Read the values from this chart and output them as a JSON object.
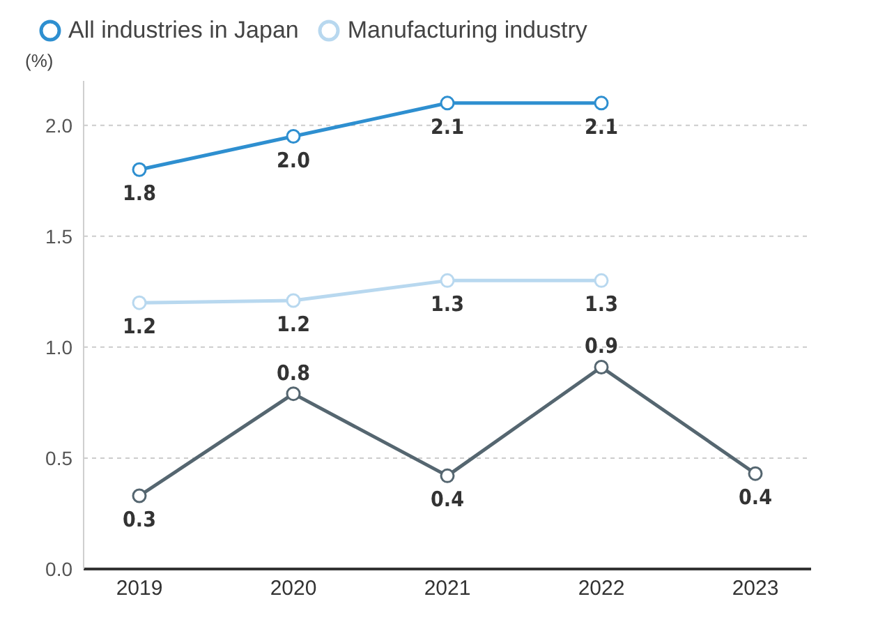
{
  "chart_data": {
    "type": "line",
    "ylabel": "(%)",
    "categories": [
      "2019",
      "2020",
      "2021",
      "2022",
      "2023"
    ],
    "series": [
      {
        "color": "#556670",
        "values": [
          0.33,
          0.79,
          0.42,
          0.91,
          0.43
        ],
        "value_labels": [
          "0.3",
          "0.8",
          "0.4",
          "0.9",
          "0.4"
        ]
      },
      {
        "name": "All industries in Japan",
        "color": "#2e8fd0",
        "values": [
          1.8,
          1.95,
          2.1,
          2.1,
          null
        ],
        "value_labels": [
          "1.8",
          "2.0",
          "2.1",
          "2.1",
          null
        ]
      },
      {
        "name": "Manufacturing industry",
        "color": "#b8d8ef",
        "values": [
          1.2,
          1.21,
          1.3,
          1.3,
          null
        ],
        "value_labels": [
          "1.2",
          "1.2",
          "1.3",
          "1.3",
          null
        ]
      }
    ],
    "yticks": [
      {
        "value": 0,
        "label": "0.0"
      },
      {
        "value": 0.5,
        "label": "0.5"
      },
      {
        "value": 1,
        "label": "1.0"
      },
      {
        "value": 1.5,
        "label": "1.5"
      },
      {
        "value": 2,
        "label": "2.0"
      }
    ],
    "ylim": [
      0,
      2.2
    ],
    "grid": "y",
    "legend": "top left",
    "marker": "circle",
    "line_style": "solid"
  }
}
